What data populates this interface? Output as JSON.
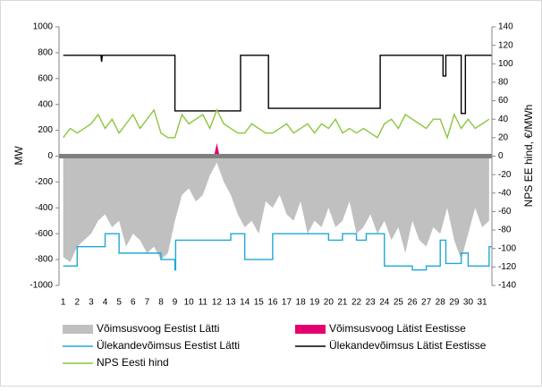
{
  "chart_data": {
    "type": "line",
    "ylabel": "MW",
    "y2label": "NPS EE hind, €/MWh",
    "xlim": [
      0.7,
      31.7
    ],
    "xticks": [
      1,
      2,
      3,
      4,
      5,
      6,
      7,
      8,
      9,
      10,
      11,
      12,
      13,
      14,
      15,
      16,
      17,
      18,
      19,
      20,
      21,
      22,
      23,
      24,
      25,
      26,
      27,
      28,
      29,
      30,
      31
    ],
    "ylim": [
      -1000,
      1000
    ],
    "yticks": [
      -1000,
      -800,
      -600,
      -400,
      -200,
      0,
      200,
      400,
      600,
      800,
      1000
    ],
    "y2lim": [
      -140,
      140
    ],
    "y2ticks": [
      -140,
      -120,
      -100,
      -80,
      -60,
      -40,
      -20,
      0,
      20,
      40,
      60,
      80,
      100,
      120,
      140
    ],
    "series": [
      {
        "name": "Võimsusvoog Eestist Lätti",
        "type": "area",
        "color": "#c0c0c0",
        "x": [
          1,
          1.5,
          2,
          2.5,
          3,
          3.5,
          4,
          4.5,
          5,
          5.5,
          6,
          6.5,
          7,
          7.5,
          8,
          8.5,
          9,
          9.5,
          10,
          10.5,
          11,
          11.5,
          12,
          12.5,
          13,
          13.5,
          14,
          14.5,
          15,
          15.5,
          16,
          16.5,
          17,
          17.5,
          18,
          18.5,
          19,
          19.5,
          20,
          20.5,
          21,
          21.5,
          22,
          22.5,
          23,
          23.5,
          24,
          24.5,
          25,
          25.5,
          26,
          26.5,
          27,
          27.5,
          28,
          28.5,
          29,
          29.5,
          30,
          30.5,
          31,
          31.5
        ],
        "values": [
          -780,
          -820,
          -700,
          -650,
          -600,
          -500,
          -450,
          -550,
          -500,
          -700,
          -600,
          -650,
          -750,
          -700,
          -800,
          -750,
          -500,
          -300,
          -250,
          -350,
          -300,
          -150,
          -50,
          -200,
          -300,
          -450,
          -550,
          -500,
          -600,
          -350,
          -400,
          -300,
          -450,
          -500,
          -350,
          -600,
          -500,
          -550,
          -400,
          -550,
          -500,
          -350,
          -600,
          -550,
          -450,
          -600,
          -500,
          -650,
          -550,
          -750,
          -500,
          -650,
          -700,
          -550,
          -600,
          -400,
          -650,
          -800,
          -600,
          -400,
          -550,
          -500
        ]
      },
      {
        "name": "Võimsusvoog Lätist Eestisse",
        "type": "area",
        "color": "#e6006e",
        "x": [
          11.8,
          12,
          12.2
        ],
        "values": [
          0,
          100,
          0
        ]
      },
      {
        "name": "Ülekandevõimsus Eestist Lätti",
        "type": "line",
        "color": "#1fa8d8",
        "x": [
          1,
          2,
          2,
          4,
          4,
          5,
          5,
          8,
          8,
          9,
          9,
          9.05,
          9.05,
          13,
          13,
          14,
          14,
          16,
          16,
          20,
          20,
          21,
          21,
          22,
          22,
          22.7,
          22.7,
          24,
          24,
          26,
          26,
          27,
          27,
          28,
          28,
          28.4,
          28.4,
          29.5,
          29.5,
          30,
          30,
          31.5,
          31.5,
          31.7
        ],
        "values": [
          -850,
          -850,
          -700,
          -700,
          -600,
          -600,
          -750,
          -750,
          -800,
          -800,
          -880,
          -880,
          -650,
          -650,
          -600,
          -600,
          -800,
          -800,
          -600,
          -600,
          -650,
          -650,
          -600,
          -600,
          -650,
          -650,
          -600,
          -600,
          -850,
          -850,
          -880,
          -880,
          -850,
          -850,
          -650,
          -650,
          -830,
          -830,
          -750,
          -750,
          -850,
          -850,
          -700,
          -700
        ]
      },
      {
        "name": "Ülekandevõimsus Lätist Eestisse",
        "type": "line",
        "color": "#000000",
        "x": [
          1,
          3.7,
          3.75,
          3.8,
          9,
          9,
          13.7,
          13.7,
          15.7,
          15.7,
          23.7,
          23.7,
          28.2,
          28.2,
          28.4,
          28.4,
          29.5,
          29.5,
          29.8,
          29.8,
          31.7
        ],
        "values": [
          780,
          780,
          730,
          780,
          780,
          350,
          350,
          780,
          780,
          370,
          370,
          780,
          780,
          620,
          620,
          780,
          780,
          330,
          330,
          780,
          780
        ]
      },
      {
        "name": "NPS Eesti hind",
        "type": "line",
        "axis": "y2",
        "color": "#8cc63f",
        "x": [
          1,
          1.5,
          2,
          2.5,
          3,
          3.5,
          4,
          4.5,
          5,
          5.5,
          6,
          6.5,
          7,
          7.5,
          8,
          8.5,
          9,
          9.5,
          10,
          10.5,
          11,
          11.5,
          12,
          12.5,
          13,
          13.5,
          14,
          14.5,
          15,
          15.5,
          16,
          16.5,
          17,
          17.5,
          18,
          18.5,
          19,
          19.5,
          20,
          20.5,
          21,
          21.5,
          22,
          22.5,
          23,
          23.5,
          24,
          24.5,
          25,
          25.5,
          26,
          26.5,
          27,
          27.5,
          28,
          28.5,
          29,
          29.5,
          30,
          30.5,
          31,
          31.5
        ],
        "values": [
          20,
          30,
          25,
          30,
          35,
          45,
          30,
          40,
          25,
          35,
          45,
          30,
          40,
          50,
          25,
          20,
          20,
          45,
          35,
          40,
          45,
          30,
          50,
          35,
          30,
          25,
          25,
          35,
          30,
          25,
          25,
          30,
          35,
          25,
          30,
          35,
          25,
          35,
          30,
          40,
          25,
          30,
          25,
          30,
          25,
          20,
          35,
          40,
          30,
          45,
          40,
          35,
          30,
          40,
          40,
          20,
          45,
          30,
          40,
          30,
          35,
          40
        ]
      }
    ]
  }
}
